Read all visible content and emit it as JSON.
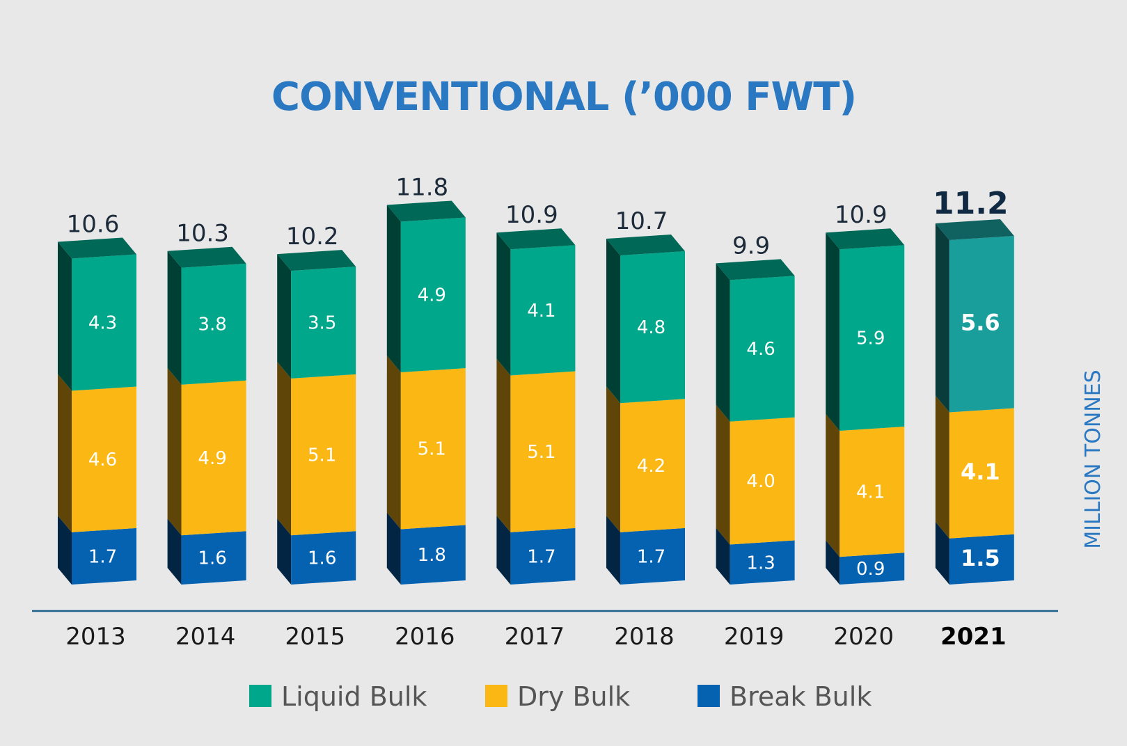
{
  "chart_data": {
    "type": "bar",
    "stacked": true,
    "title": "CONVENTIONAL (’000 FWT)",
    "ylabel": "MILLION TONNES",
    "xlabel": "",
    "categories": [
      "2013",
      "2014",
      "2015",
      "2016",
      "2017",
      "2018",
      "2019",
      "2020",
      "2021"
    ],
    "highlight": "2021",
    "ylim": [
      0,
      12
    ],
    "totals": [
      "10.6",
      "10.3",
      "10.2",
      "11.8",
      "10.9",
      "10.7",
      "9.9",
      "10.9",
      "11.2"
    ],
    "series": [
      {
        "name": "Break Bulk",
        "color": "#0562b0",
        "values": [
          1.7,
          1.6,
          1.6,
          1.8,
          1.7,
          1.7,
          1.3,
          0.9,
          1.5
        ],
        "labels": [
          "1.7",
          "1.6",
          "1.6",
          "1.8",
          "1.7",
          "1.7",
          "1.3",
          "0.9",
          "1.5"
        ]
      },
      {
        "name": "Dry Bulk",
        "color": "#fbb714",
        "values": [
          4.6,
          4.9,
          5.1,
          5.1,
          5.1,
          4.2,
          4.0,
          4.1,
          4.1
        ],
        "labels": [
          "4.6",
          "4.9",
          "5.1",
          "5.1",
          "5.1",
          "4.2",
          "4.0",
          "4.1",
          "4.1"
        ]
      },
      {
        "name": "Liquid Bulk",
        "color": "#00a78a",
        "highlight_color": "#1a9e9b",
        "values": [
          4.3,
          3.8,
          3.5,
          4.9,
          4.1,
          4.8,
          4.6,
          5.9,
          5.6
        ],
        "labels": [
          "4.3",
          "3.8",
          "3.5",
          "4.9",
          "4.1",
          "4.8",
          "4.6",
          "5.9",
          "5.6"
        ]
      }
    ],
    "legend": [
      {
        "name": "Liquid Bulk",
        "color": "#00a78a"
      },
      {
        "name": "Dry Bulk",
        "color": "#fbb714"
      },
      {
        "name": "Break Bulk",
        "color": "#0562b0"
      }
    ]
  }
}
